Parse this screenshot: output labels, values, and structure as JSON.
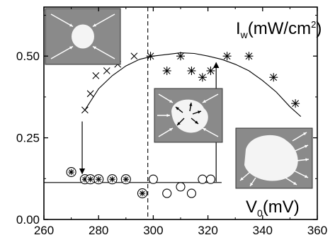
{
  "chart_data": {
    "type": "scatter",
    "title": "",
    "xlabel": "V",
    "xlabel_sub": "0",
    "xlabel_unit": "(mV)",
    "ylabel": "I",
    "ylabel_sub": "w",
    "ylabel_unit_pre": "(mW/cm",
    "ylabel_unit_sup": "2",
    "ylabel_unit_post": ")",
    "xlim": [
      260,
      360
    ],
    "ylim": [
      0,
      0.65
    ],
    "x_ticks": [
      260,
      280,
      300,
      320,
      340,
      360
    ],
    "x_tick_labels": [
      "260",
      "280",
      "300",
      "320",
      "340",
      "360"
    ],
    "y_ticks": [
      0.0,
      0.25,
      0.5
    ],
    "y_tick_labels": [
      "0.00",
      "0.25",
      "0.50"
    ],
    "grid": false,
    "vertical_dashed_line_x": 298,
    "horizontal_line_y": 0.113,
    "series": [
      {
        "marker": "x",
        "points": [
          [
            275,
            0.335
          ],
          [
            277,
            0.385
          ],
          [
            279,
            0.44
          ],
          [
            283,
            0.455
          ],
          [
            287,
            0.475
          ],
          [
            293,
            0.5
          ]
        ]
      },
      {
        "marker": "asterisk",
        "points": [
          [
            299,
            0.5
          ],
          [
            305,
            0.455
          ],
          [
            310,
            0.5
          ],
          [
            314,
            0.455
          ],
          [
            318,
            0.435
          ],
          [
            321,
            0.455
          ],
          [
            327,
            0.5
          ],
          [
            335,
            0.5
          ],
          [
            344,
            0.435
          ],
          [
            352,
            0.355
          ]
        ]
      },
      {
        "marker": "circle-asterisk",
        "points": [
          [
            270,
            0.145
          ],
          [
            275,
            0.123
          ],
          [
            277,
            0.123
          ],
          [
            280,
            0.123
          ],
          [
            285,
            0.123
          ],
          [
            290,
            0.123
          ],
          [
            296,
            0.08
          ]
        ]
      },
      {
        "marker": "circle",
        "points": [
          [
            300,
            0.123
          ],
          [
            305,
            0.08
          ],
          [
            310,
            0.1
          ],
          [
            314,
            0.08
          ],
          [
            318,
            0.123
          ],
          [
            321,
            0.123
          ]
        ]
      }
    ],
    "fit_curve": [
      [
        275,
        0.335
      ],
      [
        280,
        0.4
      ],
      [
        285,
        0.44
      ],
      [
        290,
        0.47
      ],
      [
        295,
        0.49
      ],
      [
        300,
        0.5
      ],
      [
        305,
        0.505
      ],
      [
        310,
        0.51
      ],
      [
        315,
        0.508
      ],
      [
        320,
        0.5
      ],
      [
        325,
        0.49
      ],
      [
        330,
        0.475
      ],
      [
        335,
        0.455
      ],
      [
        340,
        0.425
      ],
      [
        345,
        0.39
      ],
      [
        350,
        0.345
      ],
      [
        354,
        0.315
      ]
    ],
    "arrows": [
      {
        "from": [
          274,
          0.3
        ],
        "to": [
          274,
          0.14
        ]
      },
      {
        "from": [
          323,
          0.115
        ],
        "to": [
          323,
          0.48
        ]
      }
    ],
    "insets": [
      {
        "name": "inset-round-spot",
        "arrow_direction": "inward"
      },
      {
        "name": "inset-bumpy-spot",
        "arrow_direction": "mixed"
      },
      {
        "name": "inset-large-spot",
        "arrow_direction": "outward"
      }
    ]
  }
}
